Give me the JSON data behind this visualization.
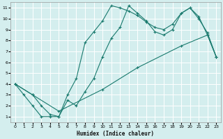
{
  "xlabel": "Humidex (Indice chaleur)",
  "bg_color": "#d4eeee",
  "line_color": "#1a7a6e",
  "grid_color": "#ffffff",
  "xlim": [
    -0.5,
    23.5
  ],
  "ylim": [
    0.5,
    11.5
  ],
  "xticks": [
    0,
    1,
    2,
    3,
    4,
    5,
    6,
    7,
    8,
    9,
    10,
    11,
    12,
    13,
    14,
    15,
    16,
    17,
    18,
    19,
    20,
    21,
    22,
    23
  ],
  "yticks": [
    1,
    2,
    3,
    4,
    5,
    6,
    7,
    8,
    9,
    10,
    11
  ],
  "line1_x": [
    0,
    1,
    2,
    3,
    4,
    5,
    6,
    7,
    8,
    9,
    10,
    11,
    12,
    13,
    14,
    15,
    16,
    17,
    18,
    19,
    20,
    21,
    22,
    23
  ],
  "line1_y": [
    4,
    3,
    2,
    1,
    1,
    1,
    3,
    4.5,
    7.8,
    8.8,
    9.8,
    11.2,
    11.0,
    10.7,
    10.3,
    9.7,
    9.2,
    9.0,
    9.5,
    10.5,
    11,
    10,
    8.7,
    6.5
  ],
  "line2_x": [
    0,
    2,
    3,
    4,
    5,
    6,
    7,
    8,
    9,
    10,
    11,
    12,
    13,
    14,
    15,
    16,
    17,
    18,
    19,
    20,
    21,
    22,
    23
  ],
  "line2_y": [
    4,
    3,
    2,
    1.2,
    1,
    2.5,
    2.0,
    3.3,
    4.5,
    6.5,
    8.2,
    9.2,
    11.2,
    10.5,
    9.8,
    8.8,
    8.5,
    9,
    10.5,
    11,
    10.2,
    8.5,
    6.5
  ],
  "line3_x": [
    0,
    2,
    5,
    10,
    14,
    19,
    22,
    23
  ],
  "line3_y": [
    4,
    3,
    1.5,
    3.5,
    5.5,
    7.5,
    8.5,
    6.5
  ]
}
